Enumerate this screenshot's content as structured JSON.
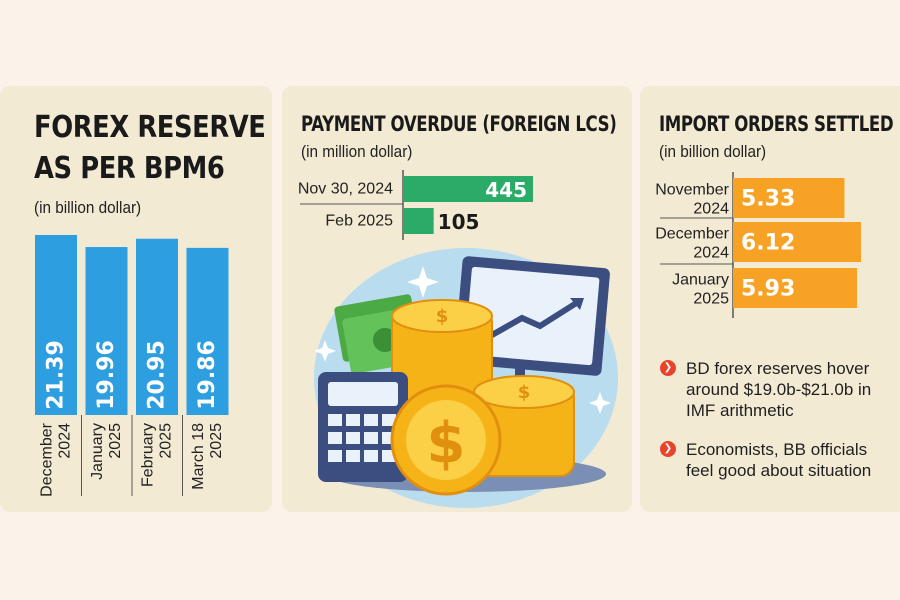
{
  "panels": {
    "forex": {
      "title_line1": "FOREX RESERVE",
      "title_line2": "AS PER BPM6",
      "subtitle": "(in billion dollar)"
    },
    "overdue": {
      "title": "PAYMENT OVERDUE (FOREIGN LCS)",
      "subtitle": "(in million dollar)"
    },
    "imports": {
      "title": "IMPORT ORDERS SETTLED",
      "subtitle": "(in billion dollar)"
    }
  },
  "bullets": [
    "BD forex reserves hover around $19.0b-$21.0b in IMF arithmetic",
    "Economists, BB officials feel good about situation"
  ],
  "icons": [
    "chevron-right-icon",
    "money-calculator-coins-illustration"
  ],
  "colors": {
    "blue": "#2d9ee0",
    "green": "#2aab67",
    "orange": "#f7a224",
    "bullet": "#e8442c",
    "panel": "#f3ead4"
  },
  "chart_data": [
    {
      "type": "bar",
      "orientation": "vertical",
      "categories": [
        [
          "December",
          "2024"
        ],
        [
          "January",
          "2025"
        ],
        [
          "February",
          "2025"
        ],
        [
          "March 18",
          "2025"
        ]
      ],
      "values": [
        21.39,
        19.96,
        20.95,
        19.86
      ],
      "labels": [
        "21.39",
        "19.96",
        "20.95",
        "19.86"
      ],
      "ylim": [
        0,
        21.39
      ]
    },
    {
      "type": "bar",
      "orientation": "horizontal",
      "categories": [
        "Nov 30, 2024",
        "Feb 2025"
      ],
      "values": [
        445,
        105
      ],
      "labels": [
        "445",
        "105"
      ]
    },
    {
      "type": "bar",
      "orientation": "horizontal",
      "categories": [
        [
          "November",
          "2024"
        ],
        [
          "December",
          "2024"
        ],
        [
          "January",
          "2025"
        ]
      ],
      "values": [
        5.33,
        6.12,
        5.93
      ],
      "labels": [
        "5.33",
        "6.12",
        "5.93"
      ]
    }
  ]
}
